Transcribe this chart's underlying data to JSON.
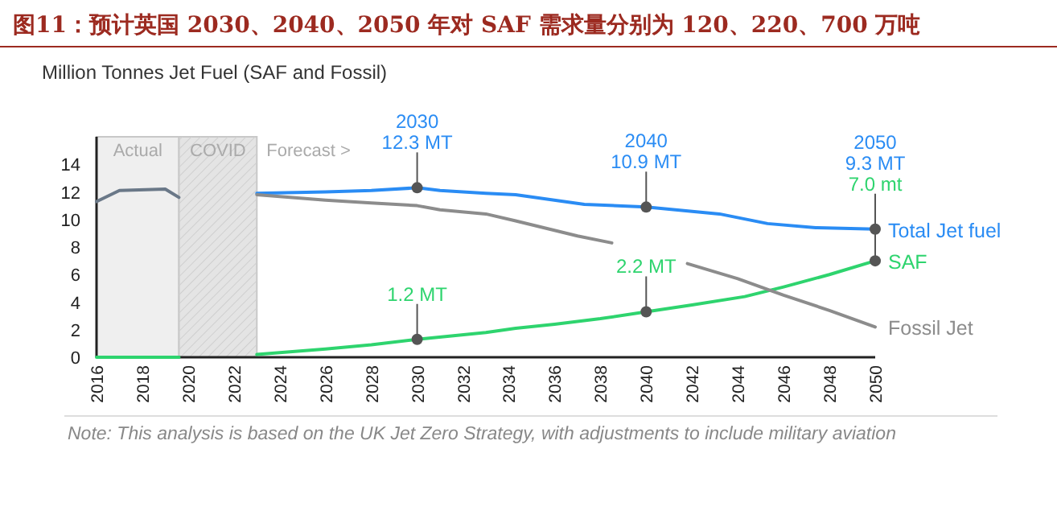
{
  "chart_data": {
    "type": "line",
    "title": "图11：预计英国 2030、2040、2050 年对 SAF 需求量分别为 120、220、700 万吨",
    "subtitle": "Million Tonnes Jet Fuel (SAF and Fossil)",
    "xlim": [
      2016,
      2050
    ],
    "xticks": [
      2016,
      2018,
      2020,
      2022,
      2024,
      2026,
      2028,
      2030,
      2032,
      2034,
      2036,
      2038,
      2040,
      2042,
      2044,
      2046,
      2048,
      2050
    ],
    "ylim": [
      0,
      16
    ],
    "yticks": [
      0,
      2,
      4,
      6,
      8,
      10,
      12,
      14
    ],
    "grid": false,
    "series": [
      {
        "color": "#6a7888",
        "x": [
          2016,
          2017,
          2019,
          2019.6
        ],
        "values": [
          11.3,
          12.1,
          12.2,
          11.6
        ]
      },
      {
        "color": "#2ed46e",
        "x": [
          2016,
          2019.6
        ],
        "values": [
          0,
          0
        ]
      },
      {
        "name": "Total Jet fuel",
        "color": "#2a8cf4",
        "x": [
          2023,
          2026,
          2028,
          2030,
          2031,
          2033,
          2034.3,
          2037.3,
          2040,
          2043.2,
          2045.3,
          2047.4,
          2050
        ],
        "values": [
          11.9,
          12.0,
          12.1,
          12.3,
          12.1,
          11.9,
          11.8,
          11.1,
          10.9,
          10.4,
          9.7,
          9.4,
          9.3
        ]
      },
      {
        "name": "SAF",
        "color": "#2ed46e",
        "x": [
          2023,
          2026,
          2028,
          2030,
          2033,
          2034.3,
          2036,
          2038,
          2040,
          2042,
          2044.3,
          2046,
          2048,
          2050
        ],
        "values": [
          0.2,
          0.6,
          0.9,
          1.3,
          1.8,
          2.1,
          2.4,
          2.8,
          3.3,
          3.8,
          4.4,
          5.1,
          6.0,
          7.0
        ]
      },
      {
        "name": "Fossil Jet",
        "color": "#8c8c8c",
        "x": [
          2023,
          2026,
          2028,
          2030,
          2031,
          2033,
          2034.3,
          2037,
          2038.5,
          2040,
          2041.8,
          2044,
          2046,
          2048,
          2050
        ],
        "values": [
          11.8,
          11.4,
          11.2,
          11.0,
          10.7,
          10.4,
          9.9,
          8.8,
          8.3,
          null,
          6.8,
          5.7,
          4.5,
          3.4,
          2.2
        ]
      }
    ],
    "bands": [
      {
        "axis": "x",
        "from": 2016,
        "to": 2019.6,
        "label": "Actual",
        "color": "#efefef"
      },
      {
        "axis": "x",
        "from": 2019.6,
        "to": 2023,
        "label": "COVID",
        "color": "#e4e4e4"
      }
    ],
    "annotations": [
      "Forecast >",
      "Note: This analysis is based on the UK Jet Zero Strategy, with adjustments to include military aviation",
      {
        "text": "2030\n12.3 MT",
        "x": 2030,
        "y": 12.3
      },
      {
        "text": "1.2 MT",
        "x": 2030,
        "y": 1.3
      },
      {
        "text": "2040\n10.9 MT",
        "x": 2040,
        "y": 10.9
      },
      {
        "text": "2.2 MT",
        "x": 2040,
        "y": 3.3
      },
      {
        "text": "2050\n9.3 MT",
        "x": 2050,
        "y": 9.3
      },
      {
        "text": "7.0 mt",
        "x": 2050,
        "y": 7.0
      }
    ]
  }
}
